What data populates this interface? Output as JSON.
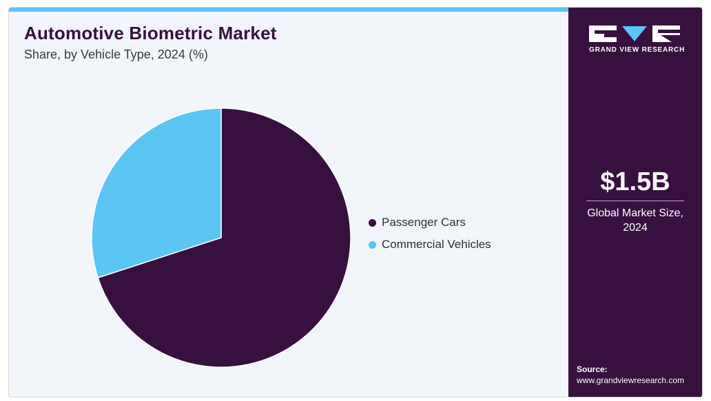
{
  "header": {
    "title": "Automotive Biometric Market",
    "subtitle": "Share, by Vehicle Type, 2024 (%)"
  },
  "colors": {
    "accent": "#5bc6f3",
    "brand_purple": "#37103f",
    "passenger_cars": "#37103f",
    "commercial_vehicles": "#5bc6f3"
  },
  "chart_data": {
    "type": "pie",
    "categories": [
      "Passenger Cars",
      "Commercial Vehicles"
    ],
    "values": [
      70,
      30
    ],
    "colors": [
      "#37103f",
      "#5bc6f3"
    ],
    "start_angle_deg": 0,
    "direction": "clockwise",
    "legend_position": "right"
  },
  "sidebar": {
    "logo_text": "GRAND VIEW RESEARCH",
    "logo_icon": "gvr-logo-icon",
    "market_value": "$1.5B",
    "market_caption_line1": "Global Market Size,",
    "market_caption_line2": "2024",
    "source_label": "Source:",
    "source_url": "www.grandviewresearch.com"
  }
}
